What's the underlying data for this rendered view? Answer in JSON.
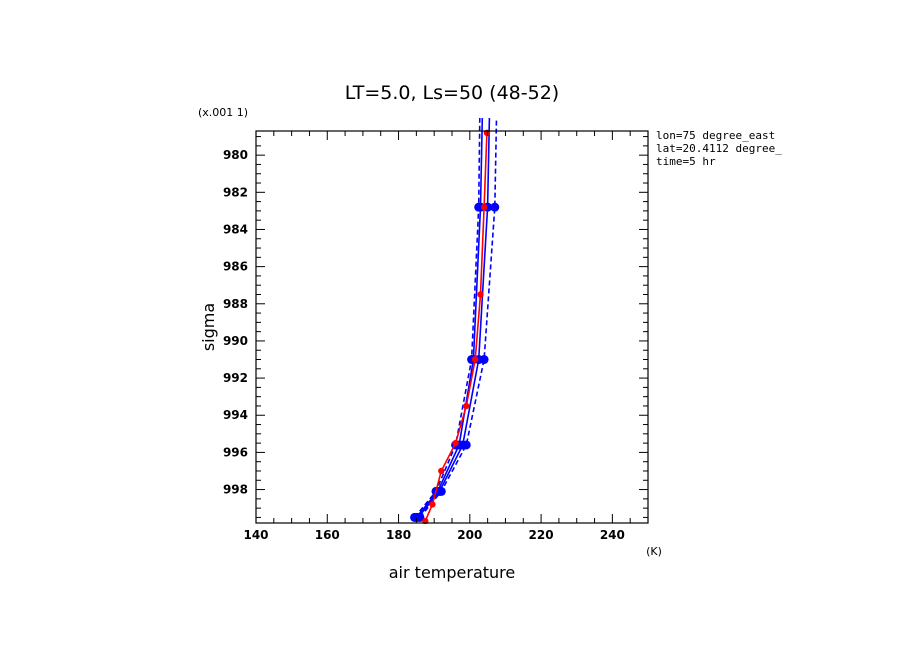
{
  "chart_data": {
    "type": "line",
    "title": "LT=5.0, Ls=50 (48-52)",
    "xlabel": "air temperature",
    "xunit": "(K)",
    "ylabel": "sigma",
    "yunit": "(x.001 1)",
    "xlim": [
      140,
      250
    ],
    "ylim": [
      999.8,
      978.7
    ],
    "y_inverted": true,
    "xticks": [
      "140",
      "160",
      "180",
      "200",
      "220",
      "240"
    ],
    "yticks": [
      "980",
      "982",
      "984",
      "986",
      "988",
      "990",
      "992",
      "994",
      "996",
      "998"
    ],
    "annotations": [
      "lon=75 degree_east",
      "lat=20.4112 degree_",
      "time=5 hr"
    ],
    "grid": false,
    "series": [
      {
        "color": "#ff0000",
        "style": "solid",
        "marker": "dot",
        "points": [
          [
            187.5,
            999.7
          ],
          [
            189.5,
            998.8
          ],
          [
            192,
            997.0
          ],
          [
            196,
            995.5
          ],
          [
            199,
            993.5
          ],
          [
            201.5,
            991.0
          ],
          [
            203,
            987.5
          ],
          [
            204,
            982.8
          ],
          [
            204.8,
            978.8
          ]
        ]
      },
      {
        "color": "#0000ff",
        "style": "solid",
        "marker": "dot",
        "points": [
          [
            185,
            999.5
          ],
          [
            191,
            998.1
          ],
          [
            197,
            995.6
          ],
          [
            201,
            991.0
          ],
          [
            203,
            982.8
          ],
          [
            203.5,
            978.0
          ]
        ]
      },
      {
        "color": "#0000ff",
        "style": "dashed",
        "marker": "dot",
        "points": [
          [
            186,
            999.5
          ],
          [
            192,
            998.1
          ],
          [
            199,
            995.6
          ],
          [
            204,
            991.0
          ],
          [
            207,
            982.8
          ],
          [
            207.5,
            978.0
          ]
        ]
      },
      {
        "color": "#0000ff",
        "style": "solid",
        "marker": "dot",
        "points": [
          [
            185.5,
            999.5
          ],
          [
            191.5,
            998.1
          ],
          [
            198,
            995.6
          ],
          [
            202.5,
            991.0
          ],
          [
            205,
            982.8
          ],
          [
            205.5,
            978.0
          ]
        ]
      },
      {
        "color": "#0000ff",
        "style": "dashed",
        "marker": "dot",
        "points": [
          [
            184.5,
            999.5
          ],
          [
            190.5,
            998.1
          ],
          [
            196,
            995.6
          ],
          [
            200.5,
            991.0
          ],
          [
            202.5,
            982.8
          ],
          [
            202.8,
            978.0
          ]
        ]
      }
    ]
  }
}
